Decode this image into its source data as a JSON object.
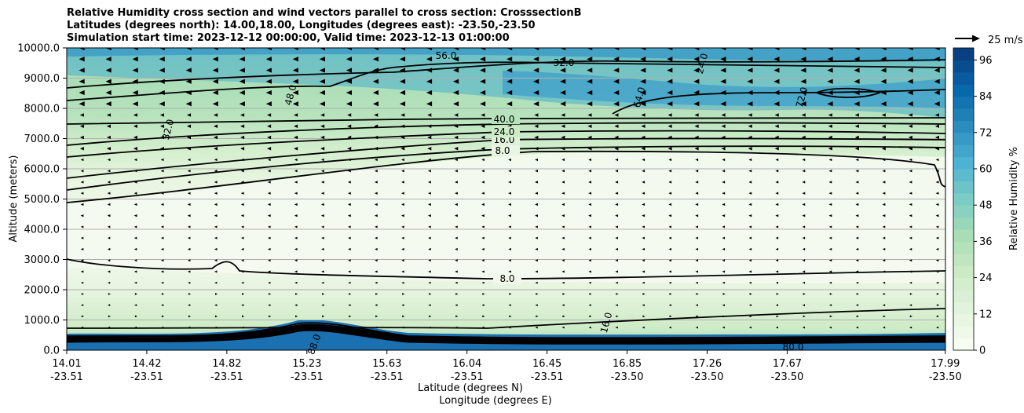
{
  "chart_data": {
    "type": "contour",
    "title_lines": [
      "Relative Humidity cross section and wind vectors parallel to cross section: CrosssectionB",
      "Latitudes (degrees north): 14.00,18.00, Longitudes (degrees east): -23.50,-23.50",
      "Simulation start time: 2023-12-12 00:00:00, Valid time: 2023-12-13 01:00:00"
    ],
    "ylabel": "Altitude (meters)",
    "xlabel_lat": "Latitude (degrees N)",
    "xlabel_lon": "Longitude (degrees E)",
    "ylim": [
      0,
      10000
    ],
    "y_ticks": [
      "0.0",
      "1000.0",
      "2000.0",
      "3000.0",
      "4000.0",
      "5000.0",
      "6000.0",
      "7000.0",
      "8000.0",
      "9000.0",
      "10000.0"
    ],
    "x_ticks": [
      {
        "lat": "14.01",
        "lon": "-23.51",
        "frac": 0.0
      },
      {
        "lat": "14.42",
        "lon": "-23.51",
        "frac": 0.0911
      },
      {
        "lat": "14.82",
        "lon": "-23.51",
        "frac": 0.1822
      },
      {
        "lat": "15.23",
        "lon": "-23.51",
        "frac": 0.2733
      },
      {
        "lat": "15.63",
        "lon": "-23.51",
        "frac": 0.3644
      },
      {
        "lat": "16.04",
        "lon": "-23.51",
        "frac": 0.4555
      },
      {
        "lat": "16.45",
        "lon": "-23.51",
        "frac": 0.5466
      },
      {
        "lat": "16.85",
        "lon": "-23.50",
        "frac": 0.6377
      },
      {
        "lat": "17.26",
        "lon": "-23.50",
        "frac": 0.7288
      },
      {
        "lat": "17.67",
        "lon": "-23.50",
        "frac": 0.8199
      },
      {
        "lat": "17.99",
        "lon": "-23.50",
        "frac": 0.9998
      }
    ],
    "colorbar": {
      "label": "Relative Humidity %",
      "ticks": [
        "0",
        "12",
        "24",
        "36",
        "48",
        "60",
        "72",
        "84",
        "96"
      ],
      "range": [
        0,
        100
      ],
      "colors": [
        "#f7fcf0",
        "#e0f3db",
        "#ccebc5",
        "#a8ddb5",
        "#7bccc4",
        "#4eb3d3",
        "#2b8cbe",
        "#0868ac",
        "#084081"
      ]
    },
    "quiver_key": "25 m/s",
    "contour_lines": [
      {
        "value": 8.0,
        "label": "8.0",
        "approx_altitude_m": 2300
      },
      {
        "value": 8.0,
        "label": "8.0",
        "approx_altitude_m": 6400
      },
      {
        "value": 16.0,
        "label": "16.0",
        "approx_altitude_m": 6700
      },
      {
        "value": 24.0,
        "label": "24.0",
        "approx_altitude_m": 7000
      },
      {
        "value": 32.0,
        "label": "32.0",
        "approx_altitude_m": 7500
      },
      {
        "value": 40.0,
        "label": "40.0",
        "approx_altitude_m": 7400
      },
      {
        "value": 56.0,
        "label": "56.0",
        "approx_altitude_m": 9700
      },
      {
        "value": 64.0,
        "label": "64.0",
        "approx_altitude_m": 8300
      },
      {
        "value": 72.0,
        "label": "72.0",
        "approx_altitude_m": 8400
      },
      {
        "value": 80.0,
        "label": "80.0",
        "approx_altitude_m": 100
      },
      {
        "value": 88.0,
        "label": "88.0",
        "approx_altitude_m": 200
      }
    ],
    "other_labels": [
      "48.0",
      "16.0",
      "32.0",
      "24.0"
    ],
    "colors": {
      "frame": "#000000",
      "grid": "#b0b0b0",
      "contour": "#000000"
    }
  }
}
